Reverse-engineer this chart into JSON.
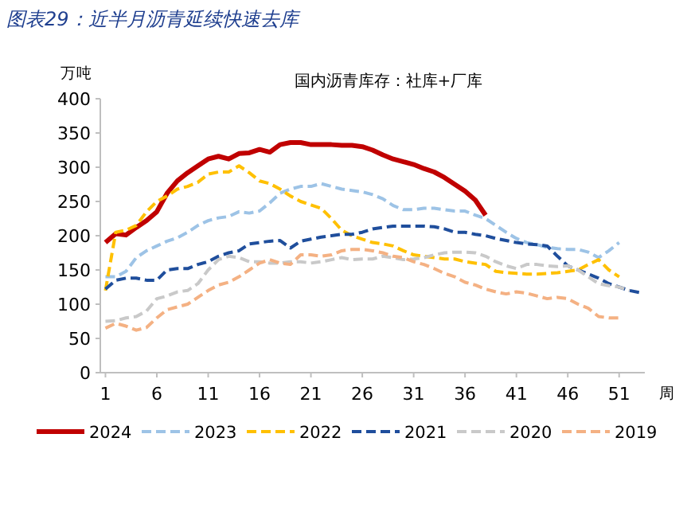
{
  "chart_data": {
    "type": "line",
    "title": "图表29：近半月沥青延续快速去库",
    "subtitle": "国内沥青库存：社库+厂库",
    "ylabel": "万吨",
    "xlabel": "周",
    "x": [
      1,
      2,
      3,
      4,
      5,
      6,
      7,
      8,
      9,
      10,
      11,
      12,
      13,
      14,
      15,
      16,
      17,
      18,
      19,
      20,
      21,
      22,
      23,
      24,
      25,
      26,
      27,
      28,
      29,
      30,
      31,
      32,
      33,
      34,
      35,
      36,
      37,
      38,
      39,
      40,
      41,
      42,
      43,
      44,
      45,
      46,
      47,
      48,
      49,
      50,
      51,
      52,
      53
    ],
    "xlim": [
      0.5,
      53.5
    ],
    "xticks": [
      1,
      6,
      11,
      16,
      21,
      26,
      31,
      36,
      41,
      46,
      51
    ],
    "ylim": [
      0,
      400
    ],
    "yticks": [
      0,
      50,
      100,
      150,
      200,
      250,
      300,
      350,
      400
    ],
    "legend": "bottom",
    "series": [
      {
        "name": "2024",
        "color": "#c00000",
        "line_style": "solid",
        "values": [
          190,
          203,
          201,
          212,
          222,
          235,
          262,
          280,
          292,
          302,
          312,
          316,
          312,
          320,
          321,
          326,
          322,
          333,
          336,
          336,
          333,
          333,
          333,
          332,
          332,
          330,
          325,
          318,
          312,
          308,
          304,
          298,
          293,
          285,
          275,
          265,
          252,
          230,
          null,
          null,
          null,
          null,
          null,
          null,
          null,
          null,
          null,
          null,
          null,
          null,
          null,
          null,
          null
        ]
      },
      {
        "name": "2023",
        "color": "#9dc3e6",
        "line_style": "dashed",
        "values": [
          140,
          140,
          148,
          168,
          178,
          185,
          192,
          197,
          205,
          215,
          222,
          226,
          228,
          235,
          233,
          236,
          248,
          262,
          268,
          272,
          272,
          276,
          272,
          268,
          266,
          264,
          260,
          254,
          244,
          238,
          238,
          240,
          240,
          238,
          236,
          236,
          230,
          225,
          215,
          205,
          196,
          190,
          187,
          183,
          181,
          180,
          180,
          176,
          168,
          178,
          190,
          null,
          null
        ]
      },
      {
        "name": "2022",
        "color": "#ffc000",
        "line_style": "dashed",
        "values": [
          120,
          205,
          208,
          215,
          235,
          250,
          258,
          268,
          272,
          278,
          290,
          293,
          293,
          302,
          292,
          280,
          276,
          268,
          258,
          250,
          245,
          240,
          225,
          208,
          200,
          195,
          190,
          188,
          185,
          178,
          172,
          170,
          168,
          166,
          166,
          162,
          160,
          158,
          148,
          146,
          145,
          144,
          144,
          145,
          146,
          148,
          150,
          158,
          165,
          150,
          140,
          null,
          null
        ]
      },
      {
        "name": "2021",
        "color": "#1f4e9c",
        "line_style": "dashed",
        "values": [
          122,
          135,
          138,
          138,
          135,
          135,
          150,
          152,
          152,
          158,
          162,
          170,
          175,
          178,
          188,
          190,
          192,
          193,
          182,
          192,
          195,
          198,
          200,
          202,
          202,
          205,
          210,
          212,
          214,
          214,
          214,
          214,
          213,
          210,
          205,
          205,
          202,
          200,
          196,
          193,
          190,
          188,
          187,
          185,
          170,
          156,
          150,
          144,
          138,
          130,
          125,
          120,
          117
        ]
      },
      {
        "name": "2020",
        "color": "#c9c9c9",
        "line_style": "dashed",
        "values": [
          75,
          76,
          80,
          82,
          90,
          108,
          112,
          118,
          120,
          130,
          150,
          165,
          170,
          168,
          162,
          162,
          160,
          160,
          162,
          162,
          160,
          162,
          165,
          168,
          165,
          166,
          166,
          170,
          168,
          165,
          166,
          168,
          172,
          175,
          176,
          176,
          175,
          170,
          162,
          156,
          152,
          158,
          158,
          156,
          155,
          156,
          150,
          140,
          130,
          127,
          125,
          120,
          null
        ]
      },
      {
        "name": "2019",
        "color": "#f4b183",
        "line_style": "dashed",
        "values": [
          65,
          72,
          68,
          62,
          66,
          80,
          92,
          96,
          100,
          110,
          120,
          128,
          132,
          140,
          150,
          160,
          165,
          160,
          158,
          172,
          172,
          170,
          172,
          178,
          180,
          180,
          178,
          175,
          170,
          168,
          162,
          158,
          152,
          145,
          140,
          132,
          128,
          122,
          118,
          115,
          118,
          116,
          112,
          108,
          110,
          108,
          100,
          94,
          82,
          80,
          80,
          null,
          null
        ]
      }
    ]
  }
}
